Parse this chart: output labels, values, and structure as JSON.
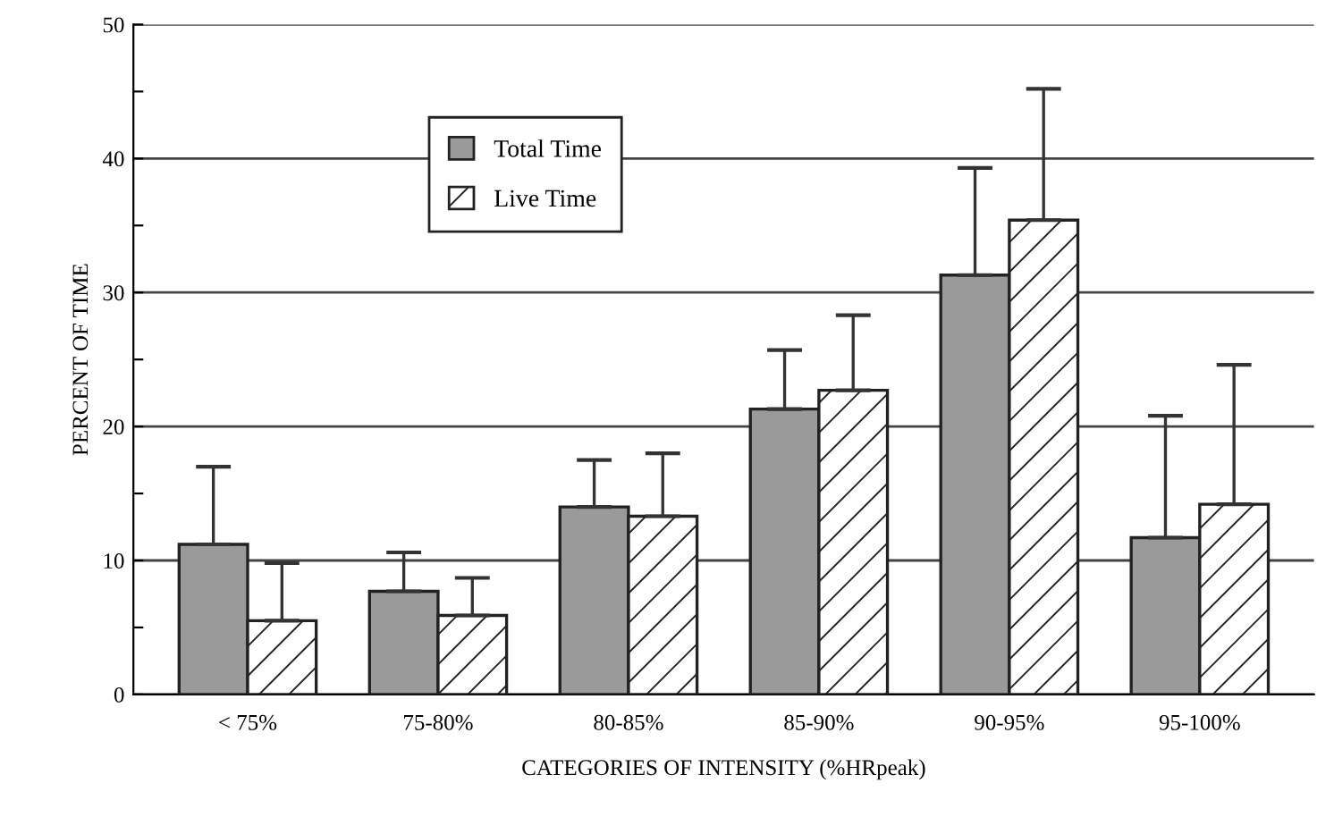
{
  "chart_data": {
    "type": "bar",
    "xlabel": "CATEGORIES OF INTENSITY (%HRpeak)",
    "ylabel": "PERCENT OF TIME",
    "categories": [
      "< 75%",
      "75-80%",
      "80-85%",
      "85-90%",
      "90-95%",
      "95-100%"
    ],
    "series": [
      {
        "name": "Total Time",
        "color": "#9a9a9a",
        "values": [
          11.2,
          7.7,
          14.0,
          21.3,
          31.3,
          11.7
        ],
        "errors": [
          [
            11.2,
            17.0
          ],
          [
            7.7,
            10.6
          ],
          [
            14.0,
            17.5
          ],
          [
            21.3,
            25.7
          ],
          [
            31.3,
            39.3
          ],
          [
            11.7,
            20.8
          ]
        ]
      },
      {
        "name": "Live Time",
        "color": "#222222",
        "values": [
          5.5,
          5.9,
          13.3,
          22.7,
          35.4,
          14.2
        ],
        "errors": [
          [
            5.5,
            9.8
          ],
          [
            5.9,
            8.7
          ],
          [
            13.3,
            18.0
          ],
          [
            22.7,
            28.3
          ],
          [
            35.4,
            45.2
          ],
          [
            14.2,
            24.6
          ]
        ]
      }
    ],
    "ylim": [
      0,
      50
    ],
    "yticks": [
      0,
      {
        "value": 5,
        "label": null
      },
      10,
      {
        "value": 15,
        "label": null
      },
      20,
      {
        "value": 25,
        "label": null
      },
      30,
      {
        "value": 35,
        "label": null
      },
      40,
      {
        "value": 45,
        "label": null
      },
      50
    ],
    "grid": "y",
    "legend": "top left"
  }
}
